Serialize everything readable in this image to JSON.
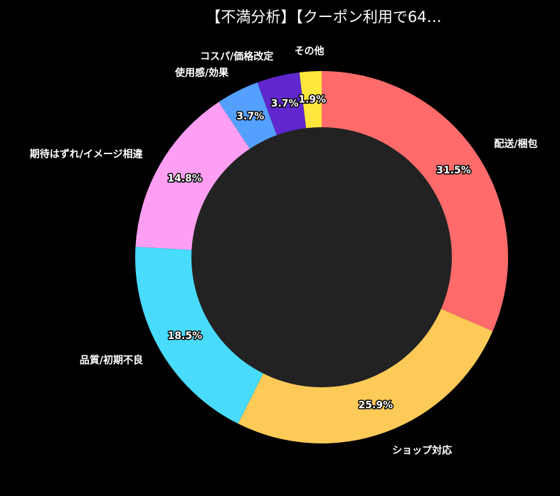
{
  "chart_data": {
    "type": "pie",
    "donut": true,
    "title": "【不満分析】【クーポン利用で64…",
    "categories": [
      "配送/梱包",
      "ショップ対応",
      "品質/初期不良",
      "期待はずれ/イメージ相違",
      "使用感/効果",
      "コスパ/価格改定",
      "その他"
    ],
    "values": [
      31.5,
      25.9,
      18.5,
      14.8,
      3.7,
      3.7,
      1.9
    ],
    "value_labels": [
      "31.5%",
      "25.9%",
      "18.5%",
      "14.8%",
      "3.7%",
      "3.7%",
      "1.9%"
    ],
    "colors": [
      "#ff6b6b",
      "#feca57",
      "#48dbfb",
      "#ff9ff3",
      "#54a0ff",
      "#5f27cd",
      "#ffe83b"
    ],
    "direction": "clockwise",
    "start": "top",
    "center_color": "#222222",
    "legend": "none"
  }
}
